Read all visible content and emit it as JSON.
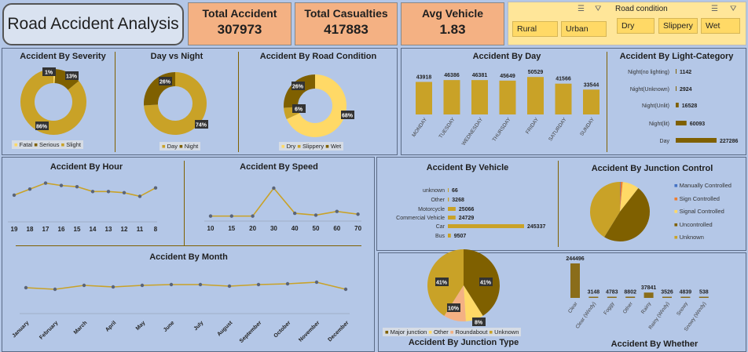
{
  "dashboard_title": "Road Accident Analysis",
  "kpis": [
    {
      "label": "Total Accident",
      "value": "307973"
    },
    {
      "label": "Total Casualties",
      "value": "417883"
    },
    {
      "label": "Avg Vehicle",
      "value": "1.83"
    }
  ],
  "slicers": {
    "area": {
      "items": [
        "Rural",
        "Urban"
      ]
    },
    "road_condition": {
      "title": "Road condition",
      "items": [
        "Dry",
        "Slippery",
        "Wet"
      ]
    }
  },
  "colors": {
    "gold": "#c9a227",
    "dark": "#7f6000",
    "olive": "#8a6d1a",
    "light": "#ffd966",
    "blue": "#4472c4",
    "peach": "#f4b183"
  },
  "chart_data": [
    {
      "id": "severity",
      "type": "pie",
      "title": "Accident By Severity",
      "categories": [
        "Fatal",
        "Serious",
        "Slight"
      ],
      "values": [
        1,
        13,
        86
      ],
      "labels": [
        "1%",
        "13%",
        "86%"
      ]
    },
    {
      "id": "daynight",
      "type": "pie",
      "title": "Day vs Night",
      "categories": [
        "Day",
        "Night"
      ],
      "values": [
        74,
        26
      ],
      "labels": [
        "74%",
        "26%"
      ]
    },
    {
      "id": "roadcond",
      "type": "pie",
      "title": "Accident By Road Condition",
      "categories": [
        "Dry",
        "Slippery",
        "Wet"
      ],
      "values": [
        68,
        6,
        26
      ],
      "labels": [
        "68%",
        "6%",
        "26%"
      ]
    },
    {
      "id": "byday",
      "type": "bar",
      "title": "Accident By Day",
      "categories": [
        "MONDAY",
        "TUESDAY",
        "WEDNESDAY",
        "THURSDAY",
        "FRIDAY",
        "SATURDAY",
        "SUNDAY"
      ],
      "values": [
        43918,
        46386,
        46381,
        45649,
        50529,
        41566,
        33544
      ]
    },
    {
      "id": "light",
      "type": "bar",
      "title": "Accident By Light-Category",
      "categories": [
        "Night(no lighting)",
        "Night(Unknown)",
        "Night(Unlit)",
        "Night(lit)",
        "Day"
      ],
      "values": [
        1142,
        2924,
        16528,
        60093,
        227286
      ]
    },
    {
      "id": "hour",
      "type": "line",
      "title": "Accident By Hour",
      "x": [
        "19",
        "18",
        "17",
        "16",
        "15",
        "14",
        "13",
        "12",
        "11",
        "8"
      ],
      "values": [
        17,
        22,
        27,
        25,
        24,
        20,
        20,
        19,
        16,
        23
      ]
    },
    {
      "id": "speed",
      "type": "line",
      "title": "Accident By Speed",
      "x": [
        "10",
        "15",
        "20",
        "30",
        "40",
        "50",
        "60",
        "70"
      ],
      "values": [
        2,
        2,
        2,
        32,
        5,
        3,
        7,
        4
      ]
    },
    {
      "id": "vehicle",
      "type": "bar",
      "title": "Accident By Vehicle",
      "categories": [
        "unknown",
        "Other",
        "Motorcycle",
        "Commercial Vehicle",
        "Car",
        "Bus"
      ],
      "values": [
        66,
        3268,
        25066,
        24729,
        245337,
        9507
      ]
    },
    {
      "id": "junction_control",
      "type": "pie",
      "title": "Accident By Junction Control",
      "categories": [
        "Manually Controlled",
        "Sign Controlled",
        "Signal Controlled",
        "Uncontrolled",
        "Unknown"
      ],
      "values": [
        0.3,
        1.2,
        9,
        48,
        41
      ]
    },
    {
      "id": "month",
      "type": "line",
      "title": "Accident By Month",
      "x": [
        "January",
        "February",
        "March",
        "April",
        "May",
        "June",
        "July",
        "August",
        "September",
        "October",
        "November",
        "December"
      ],
      "values": [
        24,
        22,
        27,
        25,
        27,
        28,
        28,
        26,
        28,
        29,
        31,
        22
      ]
    },
    {
      "id": "junction_type",
      "type": "pie",
      "title": "Accident By Junction Type",
      "categories": [
        "Major junction",
        "Other",
        "Roundabout",
        "Unknown"
      ],
      "values": [
        41,
        8,
        10,
        41
      ],
      "labels": [
        "41%",
        "8%",
        "10%",
        "41%"
      ]
    },
    {
      "id": "weather",
      "type": "bar",
      "title": "Accident By Whether",
      "categories": [
        "Clear",
        "Clear (Windy)",
        "Foggy",
        "Other",
        "Rainy",
        "Rainy (Windy)",
        "Snowy",
        "Snowy (Windy)"
      ],
      "values": [
        244496,
        3148,
        4783,
        8802,
        37841,
        3526,
        4839,
        538
      ]
    }
  ]
}
